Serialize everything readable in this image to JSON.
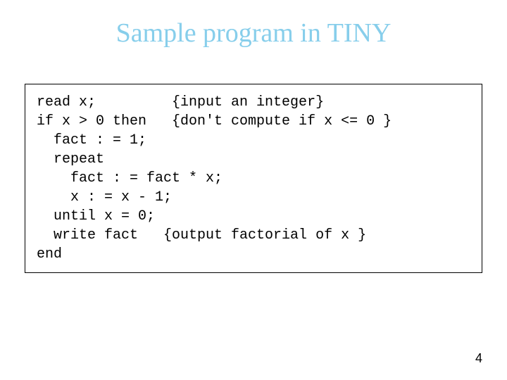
{
  "slide": {
    "title": "Sample program in TINY",
    "title_color": "#87ceeb",
    "title_fontsize": 38,
    "background_color": "#ffffff"
  },
  "code": {
    "border_color": "#000000",
    "font_family": "Courier New",
    "font_size": 20,
    "text_color": "#000000",
    "lines": [
      "read x;         {input an integer}",
      "if x > 0 then   {don't compute if x <= 0 }",
      "  fact : = 1;",
      "  repeat",
      "    fact : = fact * x;",
      "    x : = x - 1;",
      "  until x = 0;",
      "  write fact   {output factorial of x }",
      "end"
    ]
  },
  "page_number": "4"
}
